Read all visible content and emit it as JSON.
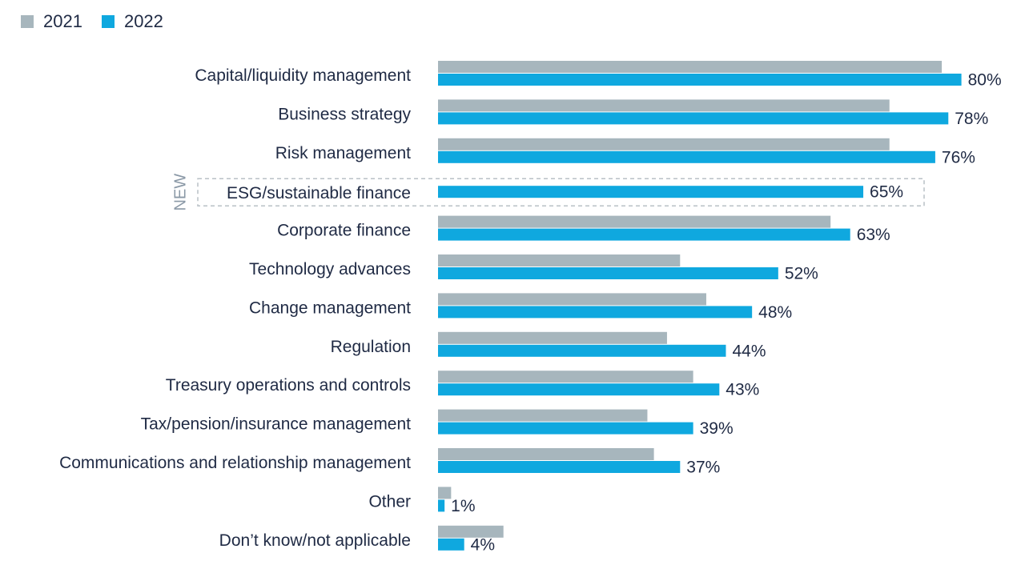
{
  "colors": {
    "series_2021": "#a7b6bd",
    "series_2022": "#0fa8df",
    "text": "#1f2a44",
    "new_tag": "#8a98a6",
    "highlight_border": "#b9c0c6"
  },
  "new_tag": "NEW",
  "chart_data": {
    "type": "bar",
    "orientation": "horizontal",
    "xlim": [
      0,
      100
    ],
    "legend_position": "top-left",
    "categories": [
      "Capital/liquidity management",
      "Business strategy",
      "Risk management",
      "ESG/sustainable finance",
      "Corporate finance",
      "Technology advances",
      "Change management",
      "Regulation",
      "Treasury operations and controls",
      "Tax/pension/insurance management",
      "Communications and relationship management",
      "Other",
      "Don’t know/not applicable"
    ],
    "highlighted_category": "ESG/sustainable finance",
    "series": [
      {
        "name": "2021",
        "values": [
          77,
          69,
          69,
          null,
          60,
          37,
          41,
          35,
          39,
          32,
          33,
          2,
          10
        ]
      },
      {
        "name": "2022",
        "values": [
          80,
          78,
          76,
          65,
          63,
          52,
          48,
          44,
          43,
          39,
          37,
          1,
          4
        ]
      }
    ],
    "data_labels": [
      "80%",
      "78%",
      "76%",
      "65%",
      "63%",
      "52%",
      "48%",
      "44%",
      "43%",
      "39%",
      "37%",
      "1%",
      "4%"
    ]
  }
}
